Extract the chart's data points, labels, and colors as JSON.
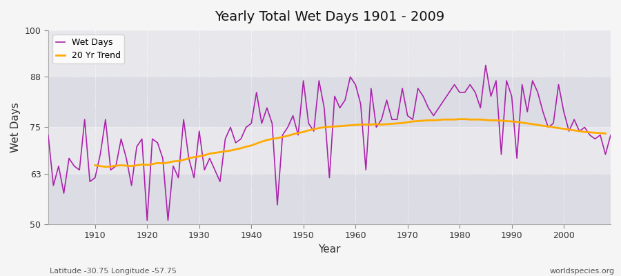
{
  "title": "Yearly Total Wet Days 1901 - 2009",
  "xlabel": "Year",
  "ylabel": "Wet Days",
  "subtitle": "Latitude -30.75 Longitude -57.75",
  "watermark": "worldspecies.org",
  "ylim": [
    50,
    100
  ],
  "yticks": [
    50,
    63,
    75,
    88,
    100
  ],
  "fig_bg_color": "#f5f5f5",
  "plot_bg_color": "#e8e8ec",
  "band_colors": [
    "#dcdce4",
    "#e8e8ec"
  ],
  "wet_days_color": "#aa22aa",
  "trend_color": "#ffaa00",
  "years": [
    1901,
    1902,
    1903,
    1904,
    1905,
    1906,
    1907,
    1908,
    1909,
    1910,
    1911,
    1912,
    1913,
    1914,
    1915,
    1916,
    1917,
    1918,
    1919,
    1920,
    1921,
    1922,
    1923,
    1924,
    1925,
    1926,
    1927,
    1928,
    1929,
    1930,
    1931,
    1932,
    1933,
    1934,
    1935,
    1936,
    1937,
    1938,
    1939,
    1940,
    1941,
    1942,
    1943,
    1944,
    1945,
    1946,
    1947,
    1948,
    1949,
    1950,
    1951,
    1952,
    1953,
    1954,
    1955,
    1956,
    1957,
    1958,
    1959,
    1960,
    1961,
    1962,
    1963,
    1964,
    1965,
    1966,
    1967,
    1968,
    1969,
    1970,
    1971,
    1972,
    1973,
    1974,
    1975,
    1976,
    1977,
    1978,
    1979,
    1980,
    1981,
    1982,
    1983,
    1984,
    1985,
    1986,
    1987,
    1988,
    1989,
    1990,
    1991,
    1992,
    1993,
    1994,
    1995,
    1996,
    1997,
    1998,
    1999,
    2000,
    2001,
    2002,
    2003,
    2004,
    2005,
    2006,
    2007,
    2008,
    2009
  ],
  "wet_days": [
    73,
    60,
    65,
    58,
    67,
    65,
    64,
    77,
    61,
    62,
    68,
    77,
    64,
    65,
    72,
    67,
    60,
    70,
    72,
    51,
    72,
    71,
    67,
    51,
    65,
    62,
    77,
    67,
    62,
    74,
    64,
    67,
    64,
    61,
    72,
    75,
    71,
    72,
    75,
    76,
    84,
    76,
    80,
    76,
    55,
    73,
    75,
    78,
    73,
    87,
    76,
    74,
    87,
    80,
    62,
    83,
    80,
    82,
    88,
    86,
    81,
    64,
    85,
    75,
    77,
    82,
    77,
    77,
    85,
    78,
    77,
    85,
    83,
    80,
    78,
    80,
    82,
    84,
    86,
    84,
    84,
    86,
    84,
    80,
    91,
    83,
    87,
    68,
    87,
    83,
    67,
    86,
    79,
    87,
    84,
    79,
    75,
    76,
    86,
    79,
    74,
    77,
    74,
    75,
    73,
    72,
    73,
    68,
    73
  ],
  "trend_years": [
    1901,
    1902,
    1903,
    1904,
    1905,
    1906,
    1907,
    1908,
    1909,
    1910,
    1911,
    1912,
    1913,
    1914,
    1915,
    1916,
    1917,
    1918,
    1919,
    1920,
    1921,
    1922,
    1923,
    1924,
    1925,
    1926,
    1927,
    1928,
    1929,
    1930,
    1931,
    1932,
    1933,
    1934,
    1935,
    1936,
    1937,
    1938,
    1939,
    1940,
    1941,
    1942,
    1943,
    1944,
    1945,
    1946,
    1947,
    1948,
    1949,
    1950,
    1951,
    1952,
    1953,
    1954,
    1955,
    1956,
    1957,
    1958,
    1959,
    1960,
    1961,
    1962,
    1963,
    1964,
    1965,
    1966,
    1967,
    1968,
    1969,
    1970,
    1971,
    1972,
    1973,
    1974,
    1975,
    1976,
    1977,
    1978,
    1979,
    1980,
    1981,
    1982,
    1983,
    1984,
    1985,
    1986,
    1987,
    1988,
    1989,
    1990,
    1991,
    1992,
    1993,
    1994,
    1995,
    1996,
    1997,
    1998,
    1999,
    2000,
    2001,
    2002,
    2003,
    2004,
    2005,
    2006,
    2007,
    2008,
    2009
  ],
  "trend_vals": [
    null,
    null,
    null,
    null,
    null,
    null,
    null,
    null,
    null,
    65.2,
    65.0,
    64.8,
    64.9,
    65.1,
    65.2,
    65.1,
    65.0,
    65.2,
    65.4,
    65.3,
    65.5,
    65.8,
    65.7,
    65.9,
    66.2,
    66.3,
    66.6,
    67.0,
    67.3,
    67.5,
    67.8,
    68.2,
    68.4,
    68.6,
    68.8,
    69.0,
    69.3,
    69.6,
    70.0,
    70.3,
    70.8,
    71.3,
    71.7,
    72.0,
    72.2,
    72.5,
    72.8,
    73.2,
    73.5,
    73.8,
    74.2,
    74.5,
    74.8,
    75.0,
    75.1,
    75.2,
    75.3,
    75.4,
    75.5,
    75.6,
    75.7,
    75.7,
    75.7,
    75.8,
    75.7,
    75.8,
    75.9,
    76.0,
    76.1,
    76.3,
    76.5,
    76.6,
    76.7,
    76.8,
    76.8,
    76.9,
    77.0,
    77.0,
    77.0,
    77.1,
    77.1,
    77.0,
    77.0,
    77.0,
    76.9,
    76.8,
    76.8,
    76.7,
    76.6,
    76.5,
    76.4,
    76.2,
    76.0,
    75.8,
    75.6,
    75.4,
    75.2,
    75.0,
    74.8,
    74.6,
    74.4,
    74.2,
    74.0,
    73.8,
    73.7,
    73.6,
    73.5,
    73.4
  ]
}
